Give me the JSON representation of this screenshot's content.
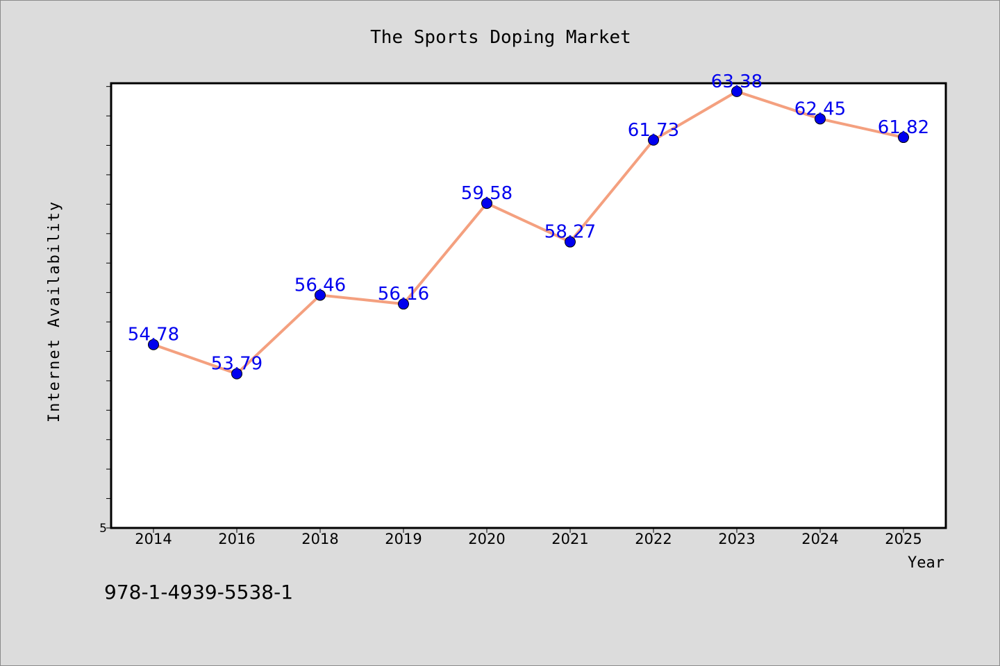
{
  "chart_data": {
    "type": "line",
    "title": "The Sports Doping Market",
    "xlabel": "Year",
    "ylabel": "Internet Availability",
    "categories": [
      "2014",
      "2016",
      "2018",
      "2019",
      "2020",
      "2021",
      "2022",
      "2023",
      "2024",
      "2025"
    ],
    "series": [
      {
        "values": [
          54.78,
          53.79,
          56.46,
          56.16,
          59.58,
          58.27,
          61.73,
          63.38,
          62.45,
          61.82
        ]
      }
    ],
    "data_labels": [
      "54.78",
      "53.79",
      "56.46",
      "56.16",
      "59.58",
      "58.27",
      "61.73",
      "63.38",
      "62.45",
      "61.82"
    ],
    "ylim": [
      48.55,
      63.66
    ],
    "y_tick_step": 1,
    "y_tick_labels": [
      {
        "value": 48.55,
        "label": "5"
      }
    ],
    "grid": false,
    "legend": "none",
    "colors": {
      "line": "#f4a07f",
      "marker": "#0000ee",
      "data_label": "#0000ee",
      "background": "#dcdcdc",
      "plot_background": "#ffffff"
    }
  },
  "footer": {
    "isbn": "978-1-4939-5538-1"
  }
}
